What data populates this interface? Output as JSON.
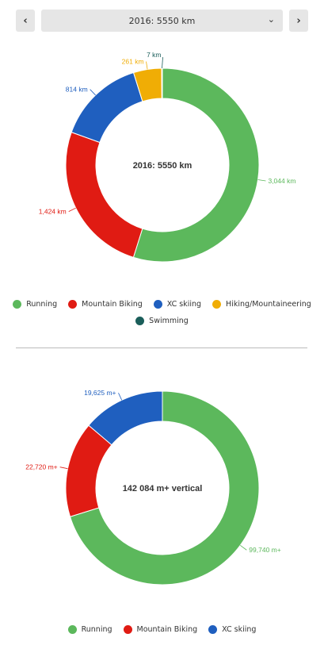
{
  "toolbar": {
    "prev_icon": "‹",
    "next_icon": "›",
    "selected_period": "2016: 5550 km",
    "dropdown_icon": "⌄"
  },
  "chart_data": [
    {
      "type": "pie",
      "title": "2016: 5550 km",
      "unit": "km",
      "categories": [
        "Running",
        "Mountain Biking",
        "XC skiing",
        "Hiking/Mountaineering",
        "Swimming"
      ],
      "values": [
        3044,
        1424,
        814,
        261,
        7
      ],
      "labels": [
        "3,044 km",
        "1,424 km",
        "814 km",
        "261 km",
        "7 km"
      ],
      "colors": [
        "#5cb85c",
        "#e01b13",
        "#1f5fbf",
        "#f0ad05",
        "#1b5e5a"
      ]
    },
    {
      "type": "pie",
      "title": "142 084 m+ vertical",
      "unit": "m+",
      "categories": [
        "Running",
        "Mountain Biking",
        "XC skiing"
      ],
      "values": [
        99740,
        22720,
        19625
      ],
      "labels": [
        "99,740 m+",
        "22,720 m+",
        "19,625 m+"
      ],
      "colors": [
        "#5cb85c",
        "#e01b13",
        "#1f5fbf"
      ]
    }
  ]
}
